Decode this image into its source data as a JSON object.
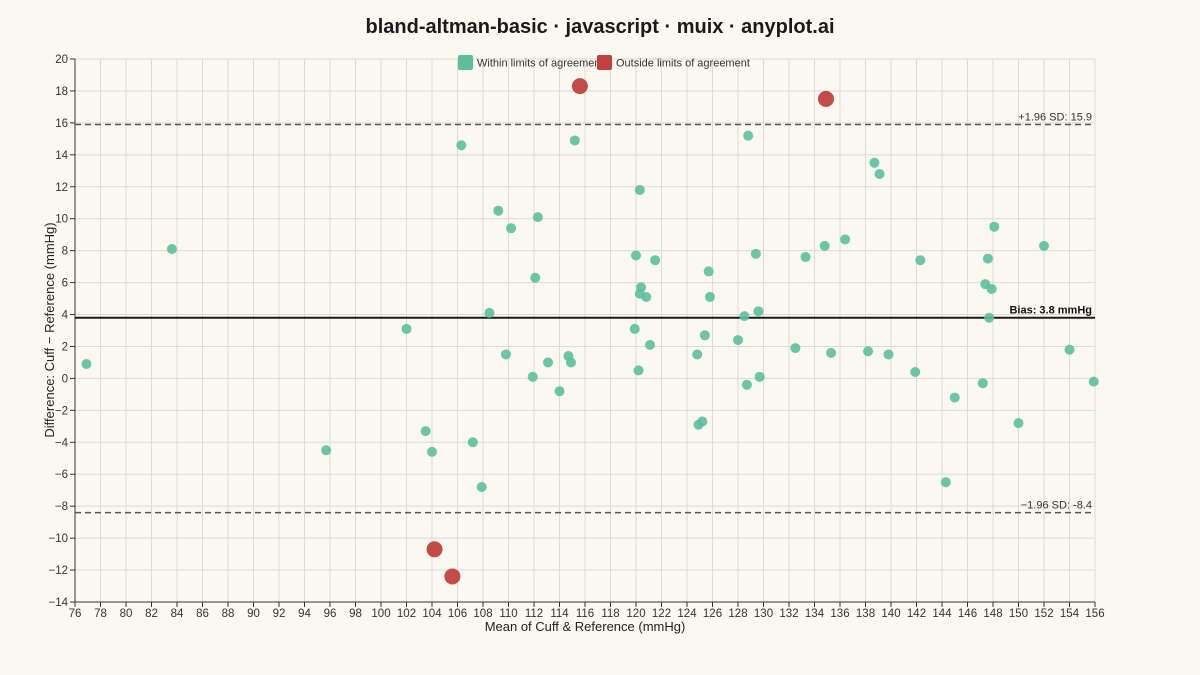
{
  "chart_data": {
    "type": "scatter",
    "title": "bland-altman-basic · javascript · muix · anyplot.ai",
    "xlabel": "Mean of Cuff & Reference (mmHg)",
    "ylabel": "Difference: Cuff − Reference (mmHg)",
    "xlim": [
      76,
      156
    ],
    "ylim": [
      -14,
      20
    ],
    "x_ticks": [
      76,
      78,
      80,
      82,
      84,
      86,
      88,
      90,
      92,
      94,
      96,
      98,
      100,
      102,
      104,
      106,
      108,
      110,
      112,
      114,
      116,
      118,
      120,
      122,
      124,
      126,
      128,
      130,
      132,
      134,
      136,
      138,
      140,
      142,
      144,
      146,
      148,
      150,
      152,
      154,
      156
    ],
    "y_ticks": [
      -14,
      -12,
      -10,
      -8,
      -6,
      -4,
      -2,
      0,
      2,
      4,
      6,
      8,
      10,
      12,
      14,
      16,
      18,
      20
    ],
    "grid": true,
    "legend_position": "top-center",
    "colors": {
      "within": "#5BBF9E",
      "outside": "#C0413E",
      "bias_line": "#1a1a1a",
      "limit_line": "#555555"
    },
    "bias": 3.8,
    "upper_loa": 15.9,
    "lower_loa": -8.4,
    "bias_label": "Bias: 3.8 mmHg",
    "upper_label": "+1.96 SD: 15.9",
    "lower_label": "−1.96 SD: -8.4",
    "series": [
      {
        "name": "Within limits of agreement",
        "points": [
          [
            76.9,
            0.9
          ],
          [
            83.6,
            8.1
          ],
          [
            95.7,
            -4.5
          ],
          [
            102.0,
            3.1
          ],
          [
            103.5,
            -3.3
          ],
          [
            104.0,
            -4.6
          ],
          [
            106.3,
            14.6
          ],
          [
            107.2,
            -4.0
          ],
          [
            107.9,
            -6.8
          ],
          [
            108.5,
            4.1
          ],
          [
            109.2,
            10.5
          ],
          [
            109.8,
            1.5
          ],
          [
            110.2,
            9.4
          ],
          [
            111.9,
            0.1
          ],
          [
            112.1,
            6.3
          ],
          [
            112.3,
            10.1
          ],
          [
            113.1,
            1.0
          ],
          [
            114.0,
            -0.8
          ],
          [
            114.7,
            1.4
          ],
          [
            114.9,
            1.0
          ],
          [
            115.2,
            14.9
          ],
          [
            119.9,
            3.1
          ],
          [
            120.0,
            7.7
          ],
          [
            120.2,
            0.5
          ],
          [
            120.3,
            11.8
          ],
          [
            120.3,
            5.3
          ],
          [
            120.4,
            5.7
          ],
          [
            120.8,
            5.1
          ],
          [
            121.1,
            2.1
          ],
          [
            121.5,
            7.4
          ],
          [
            124.8,
            1.5
          ],
          [
            124.9,
            -2.9
          ],
          [
            125.2,
            -2.7
          ],
          [
            125.4,
            2.7
          ],
          [
            125.7,
            6.7
          ],
          [
            125.8,
            5.1
          ],
          [
            128.0,
            2.4
          ],
          [
            128.5,
            3.9
          ],
          [
            128.7,
            -0.4
          ],
          [
            128.8,
            15.2
          ],
          [
            129.4,
            7.8
          ],
          [
            129.6,
            4.2
          ],
          [
            129.7,
            0.1
          ],
          [
            132.5,
            1.9
          ],
          [
            133.3,
            7.6
          ],
          [
            134.8,
            8.3
          ],
          [
            135.3,
            1.6
          ],
          [
            136.4,
            8.7
          ],
          [
            138.2,
            1.7
          ],
          [
            138.7,
            13.5
          ],
          [
            139.1,
            12.8
          ],
          [
            139.8,
            1.5
          ],
          [
            141.9,
            0.4
          ],
          [
            142.3,
            7.4
          ],
          [
            144.3,
            -6.5
          ],
          [
            145.0,
            -1.2
          ],
          [
            147.2,
            -0.3
          ],
          [
            147.4,
            5.9
          ],
          [
            147.6,
            7.5
          ],
          [
            147.7,
            3.8
          ],
          [
            147.9,
            5.6
          ],
          [
            148.1,
            9.5
          ],
          [
            150.0,
            -2.8
          ],
          [
            152.0,
            8.3
          ],
          [
            154.0,
            1.8
          ],
          [
            155.9,
            -0.2
          ]
        ]
      },
      {
        "name": "Outside limits of agreement",
        "points": [
          [
            115.6,
            18.3
          ],
          [
            134.9,
            17.5
          ],
          [
            104.2,
            -10.7
          ],
          [
            105.6,
            -12.4
          ]
        ]
      }
    ]
  }
}
